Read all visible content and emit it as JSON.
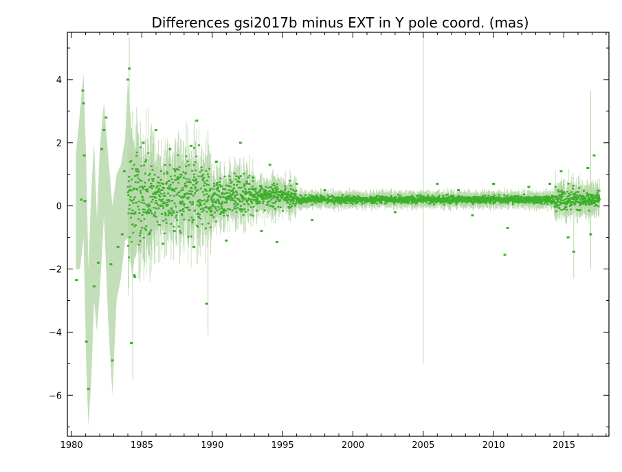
{
  "chart_data": {
    "type": "scatter",
    "title": "Differences gsi2017b minus EXT in Y pole coord. (mas)",
    "xlabel": "",
    "ylabel": "",
    "xlim": [
      1979.7,
      2018.2
    ],
    "ylim": [
      -7.3,
      5.5
    ],
    "x_ticks": [
      1980,
      1985,
      1990,
      1995,
      2000,
      2005,
      2010,
      2015
    ],
    "x_tick_labels": [
      "1980",
      "1985",
      "1990",
      "1995",
      "2000",
      "2005",
      "2010",
      "2015"
    ],
    "y_ticks": [
      -6,
      -4,
      -2,
      0,
      2,
      4
    ],
    "y_tick_labels": [
      "−6",
      "−4",
      "−2",
      "0",
      "2",
      "4"
    ],
    "grid": false,
    "legend": "none",
    "colors": {
      "points": "#3cb02a",
      "error_band": "#b9d9ad",
      "frame": "#000000"
    },
    "series": [
      {
        "values_description_free": true,
        "points": [
          [
            1980.35,
            -2.35
          ],
          [
            1980.7,
            0.2
          ],
          [
            1980.8,
            3.65
          ],
          [
            1980.85,
            3.25
          ],
          [
            1980.9,
            1.6
          ],
          [
            1980.95,
            0.15
          ],
          [
            1981.05,
            -4.3
          ],
          [
            1981.2,
            -5.8
          ],
          [
            1981.6,
            -2.55
          ],
          [
            1981.9,
            -1.8
          ],
          [
            1982.15,
            1.8
          ],
          [
            1982.3,
            2.4
          ],
          [
            1982.45,
            2.8
          ],
          [
            1982.8,
            -1.85
          ],
          [
            1982.9,
            -4.9
          ],
          [
            1983.3,
            -1.3
          ],
          [
            1983.6,
            -0.9
          ],
          [
            1983.75,
            1.1
          ],
          [
            1984.0,
            4.0
          ],
          [
            1984.1,
            4.35
          ],
          [
            1984.25,
            -4.35
          ],
          [
            1984.45,
            -2.2
          ],
          [
            1984.5,
            -2.25
          ],
          [
            1985.1,
            2.0
          ],
          [
            1985.5,
            -0.9
          ],
          [
            1986.0,
            2.4
          ],
          [
            1986.5,
            -1.2
          ],
          [
            1987.0,
            1.8
          ],
          [
            1987.3,
            -0.8
          ],
          [
            1988.5,
            1.9
          ],
          [
            1988.7,
            -1.3
          ],
          [
            1988.9,
            2.7
          ],
          [
            1989.6,
            -3.1
          ],
          [
            1990.3,
            1.4
          ],
          [
            1991.0,
            -1.1
          ],
          [
            1992.0,
            2.0
          ],
          [
            1992.9,
            0.9
          ],
          [
            1993.5,
            -0.8
          ],
          [
            1994.1,
            1.3
          ],
          [
            1994.6,
            -1.15
          ],
          [
            1996.0,
            0.7
          ],
          [
            1997.1,
            -0.45
          ],
          [
            1998.0,
            0.5
          ],
          [
            2000.0,
            0.15
          ],
          [
            2002.0,
            0.1
          ],
          [
            2003.0,
            -0.2
          ],
          [
            2005.0,
            0.3
          ],
          [
            2006.0,
            0.7
          ],
          [
            2007.5,
            0.5
          ],
          [
            2008.5,
            -0.3
          ],
          [
            2010.0,
            0.7
          ],
          [
            2010.8,
            -1.55
          ],
          [
            2011.0,
            -0.7
          ],
          [
            2012.5,
            0.6
          ],
          [
            2014.0,
            0.7
          ],
          [
            2014.8,
            1.1
          ],
          [
            2015.3,
            -1.0
          ],
          [
            2015.7,
            -1.45
          ],
          [
            2016.7,
            1.2
          ],
          [
            2016.9,
            -0.9
          ],
          [
            2017.15,
            1.6
          ],
          [
            2017.4,
            0.2
          ]
        ]
      }
    ]
  }
}
